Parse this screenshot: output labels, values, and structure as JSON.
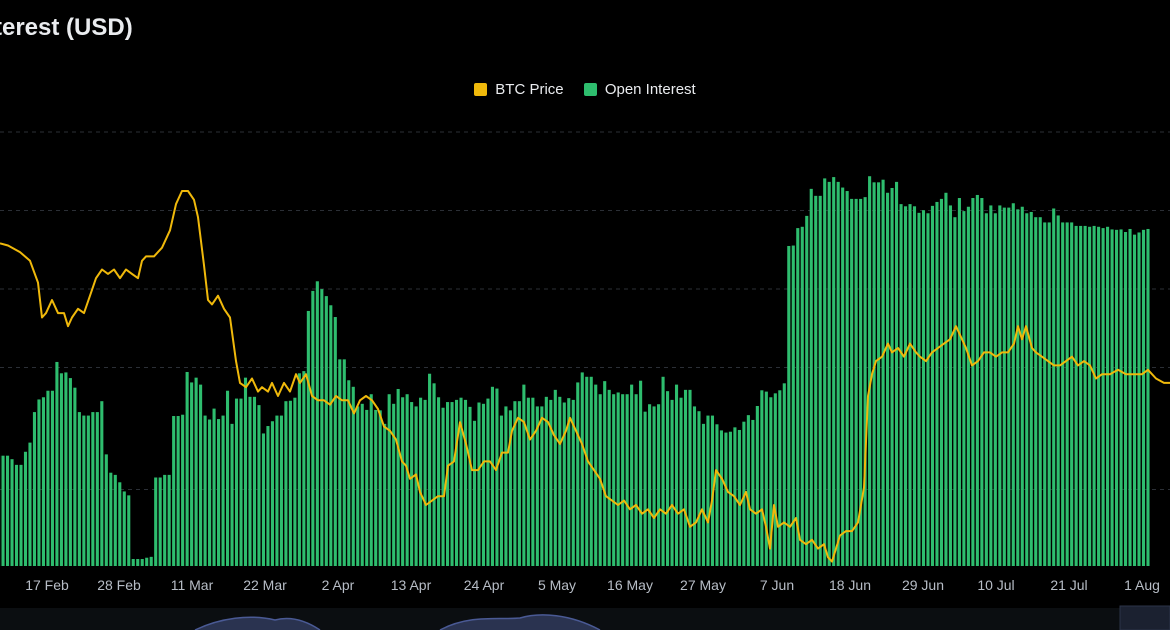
{
  "title": "terest (USD)",
  "chart_data": {
    "type": "bar",
    "x_tick_labels": [
      "17 Feb",
      "28 Feb",
      "11 Mar",
      "22 Mar",
      "2 Apr",
      "13 Apr",
      "24 Apr",
      "5 May",
      "16 May",
      "27 May",
      "7 Jun",
      "18 Jun",
      "29 Jun",
      "10 Jul",
      "21 Jul",
      "1 Aug"
    ],
    "grid": true,
    "legend_position": "top-center",
    "series": [
      {
        "name": "BTC Price",
        "kind": "line",
        "color": "#f0b90b",
        "points": [
          [
            0,
            0.74
          ],
          [
            8,
            0.735
          ],
          [
            20,
            0.72
          ],
          [
            30,
            0.7
          ],
          [
            38,
            0.65
          ],
          [
            42,
            0.57
          ],
          [
            46,
            0.58
          ],
          [
            52,
            0.61
          ],
          [
            58,
            0.58
          ],
          [
            64,
            0.58
          ],
          [
            68,
            0.55
          ],
          [
            72,
            0.57
          ],
          [
            78,
            0.59
          ],
          [
            84,
            0.58
          ],
          [
            90,
            0.62
          ],
          [
            96,
            0.66
          ],
          [
            102,
            0.68
          ],
          [
            108,
            0.67
          ],
          [
            114,
            0.68
          ],
          [
            120,
            0.66
          ],
          [
            126,
            0.68
          ],
          [
            132,
            0.67
          ],
          [
            138,
            0.66
          ],
          [
            142,
            0.7
          ],
          [
            146,
            0.71
          ],
          [
            154,
            0.71
          ],
          [
            162,
            0.73
          ],
          [
            170,
            0.77
          ],
          [
            176,
            0.83
          ],
          [
            182,
            0.86
          ],
          [
            188,
            0.86
          ],
          [
            194,
            0.84
          ],
          [
            198,
            0.8
          ],
          [
            204,
            0.69
          ],
          [
            208,
            0.61
          ],
          [
            212,
            0.6
          ],
          [
            218,
            0.62
          ],
          [
            224,
            0.59
          ],
          [
            230,
            0.57
          ],
          [
            236,
            0.47
          ],
          [
            240,
            0.42
          ],
          [
            246,
            0.41
          ],
          [
            252,
            0.43
          ],
          [
            258,
            0.4
          ],
          [
            262,
            0.41
          ],
          [
            268,
            0.4
          ],
          [
            272,
            0.42
          ],
          [
            278,
            0.39
          ],
          [
            284,
            0.42
          ],
          [
            290,
            0.4
          ],
          [
            296,
            0.44
          ],
          [
            300,
            0.42
          ],
          [
            306,
            0.44
          ],
          [
            312,
            0.39
          ],
          [
            318,
            0.38
          ],
          [
            324,
            0.38
          ],
          [
            330,
            0.37
          ],
          [
            336,
            0.39
          ],
          [
            342,
            0.38
          ],
          [
            348,
            0.38
          ],
          [
            354,
            0.35
          ],
          [
            360,
            0.38
          ],
          [
            366,
            0.39
          ],
          [
            372,
            0.38
          ],
          [
            378,
            0.36
          ],
          [
            384,
            0.32
          ],
          [
            390,
            0.31
          ],
          [
            396,
            0.29
          ],
          [
            402,
            0.24
          ],
          [
            406,
            0.23
          ],
          [
            410,
            0.2
          ],
          [
            416,
            0.21
          ],
          [
            420,
            0.17
          ],
          [
            426,
            0.14
          ],
          [
            432,
            0.15
          ],
          [
            438,
            0.16
          ],
          [
            444,
            0.16
          ],
          [
            448,
            0.23
          ],
          [
            454,
            0.24
          ],
          [
            460,
            0.33
          ],
          [
            466,
            0.28
          ],
          [
            472,
            0.22
          ],
          [
            478,
            0.22
          ],
          [
            484,
            0.24
          ],
          [
            490,
            0.24
          ],
          [
            496,
            0.22
          ],
          [
            502,
            0.26
          ],
          [
            508,
            0.26
          ],
          [
            512,
            0.31
          ],
          [
            518,
            0.34
          ],
          [
            524,
            0.33
          ],
          [
            530,
            0.29
          ],
          [
            536,
            0.31
          ],
          [
            542,
            0.34
          ],
          [
            548,
            0.33
          ],
          [
            554,
            0.3
          ],
          [
            560,
            0.28
          ],
          [
            566,
            0.31
          ],
          [
            570,
            0.34
          ],
          [
            576,
            0.31
          ],
          [
            582,
            0.28
          ],
          [
            588,
            0.24
          ],
          [
            594,
            0.22
          ],
          [
            600,
            0.2
          ],
          [
            606,
            0.16
          ],
          [
            612,
            0.15
          ],
          [
            618,
            0.14
          ],
          [
            624,
            0.15
          ],
          [
            630,
            0.13
          ],
          [
            636,
            0.14
          ],
          [
            642,
            0.12
          ],
          [
            648,
            0.13
          ],
          [
            654,
            0.11
          ],
          [
            660,
            0.13
          ],
          [
            666,
            0.12
          ],
          [
            672,
            0.14
          ],
          [
            678,
            0.12
          ],
          [
            684,
            0.13
          ],
          [
            690,
            0.09
          ],
          [
            696,
            0.1
          ],
          [
            702,
            0.13
          ],
          [
            708,
            0.1
          ],
          [
            712,
            0.15
          ],
          [
            716,
            0.22
          ],
          [
            722,
            0.2
          ],
          [
            728,
            0.17
          ],
          [
            734,
            0.16
          ],
          [
            740,
            0.14
          ],
          [
            746,
            0.17
          ],
          [
            750,
            0.13
          ],
          [
            756,
            0.12
          ],
          [
            762,
            0.13
          ],
          [
            766,
            0.09
          ],
          [
            770,
            0.04
          ],
          [
            774,
            0.14
          ],
          [
            778,
            0.09
          ],
          [
            784,
            0.1
          ],
          [
            790,
            0.09
          ],
          [
            796,
            0.11
          ],
          [
            800,
            0.06
          ],
          [
            806,
            0.05
          ],
          [
            812,
            0.06
          ],
          [
            818,
            0.04
          ],
          [
            824,
            0.05
          ],
          [
            828,
            0.02
          ],
          [
            832,
            0.01
          ],
          [
            836,
            0.04
          ],
          [
            840,
            0.07
          ],
          [
            846,
            0.08
          ],
          [
            852,
            0.08
          ],
          [
            858,
            0.1
          ],
          [
            864,
            0.18
          ],
          [
            868,
            0.39
          ],
          [
            872,
            0.44
          ],
          [
            876,
            0.47
          ],
          [
            882,
            0.48
          ],
          [
            888,
            0.51
          ],
          [
            892,
            0.49
          ],
          [
            898,
            0.5
          ],
          [
            904,
            0.48
          ],
          [
            910,
            0.51
          ],
          [
            916,
            0.49
          ],
          [
            920,
            0.48
          ],
          [
            926,
            0.47
          ],
          [
            932,
            0.49
          ],
          [
            938,
            0.5
          ],
          [
            944,
            0.51
          ],
          [
            950,
            0.52
          ],
          [
            956,
            0.55
          ],
          [
            960,
            0.53
          ],
          [
            966,
            0.5
          ],
          [
            972,
            0.46
          ],
          [
            978,
            0.47
          ],
          [
            984,
            0.49
          ],
          [
            990,
            0.49
          ],
          [
            996,
            0.48
          ],
          [
            1002,
            0.49
          ],
          [
            1008,
            0.49
          ],
          [
            1014,
            0.51
          ],
          [
            1018,
            0.55
          ],
          [
            1022,
            0.52
          ],
          [
            1026,
            0.55
          ],
          [
            1032,
            0.5
          ],
          [
            1036,
            0.49
          ],
          [
            1042,
            0.48
          ],
          [
            1048,
            0.47
          ],
          [
            1054,
            0.46
          ],
          [
            1060,
            0.46
          ],
          [
            1066,
            0.47
          ],
          [
            1072,
            0.48
          ],
          [
            1078,
            0.46
          ],
          [
            1084,
            0.47
          ],
          [
            1090,
            0.46
          ],
          [
            1096,
            0.43
          ],
          [
            1102,
            0.44
          ],
          [
            1110,
            0.44
          ],
          [
            1118,
            0.45
          ],
          [
            1126,
            0.44
          ],
          [
            1134,
            0.44
          ],
          [
            1142,
            0.44
          ],
          [
            1148,
            0.45
          ],
          [
            1156,
            0.43
          ],
          [
            1164,
            0.42
          ],
          [
            1170,
            0.42
          ]
        ]
      },
      {
        "name": "Open Interest",
        "kind": "bar",
        "color": "#2ebd6e",
        "values": [
          0.253,
          0.253,
          0.253,
          0.245,
          0.232,
          0.232,
          0.262,
          0.283,
          0.353,
          0.382,
          0.387,
          0.402,
          0.402,
          0.468,
          0.442,
          0.444,
          0.431,
          0.409,
          0.353,
          0.345,
          0.345,
          0.353,
          0.353,
          0.378,
          0.256,
          0.214,
          0.209,
          0.192,
          0.171,
          0.162,
          0.016,
          0.016,
          0.016,
          0.019,
          0.021,
          0.203,
          0.203,
          0.209,
          0.209,
          0.344,
          0.344,
          0.347,
          0.445,
          0.421,
          0.432,
          0.416,
          0.345,
          0.336,
          0.361,
          0.337,
          0.345,
          0.402,
          0.326,
          0.384,
          0.384,
          0.432,
          0.388,
          0.388,
          0.369,
          0.304,
          0.321,
          0.332,
          0.345,
          0.345,
          0.378,
          0.379,
          0.386,
          0.442,
          0.447,
          0.585,
          0.631,
          0.653,
          0.635,
          0.619,
          0.598,
          0.571,
          0.474,
          0.474,
          0.426,
          0.411,
          0.366,
          0.372,
          0.358,
          0.394,
          0.358,
          0.357,
          0.326,
          0.394,
          0.372,
          0.406,
          0.387,
          0.394,
          0.376,
          0.366,
          0.386,
          0.381,
          0.441,
          0.419,
          0.387,
          0.363,
          0.376,
          0.376,
          0.381,
          0.386,
          0.381,
          0.365,
          0.333,
          0.375,
          0.372,
          0.384,
          0.411,
          0.407,
          0.345,
          0.366,
          0.357,
          0.378,
          0.378,
          0.416,
          0.386,
          0.386,
          0.366,
          0.366,
          0.388,
          0.381,
          0.404,
          0.388,
          0.375,
          0.385,
          0.381,
          0.421,
          0.444,
          0.434,
          0.434,
          0.416,
          0.394,
          0.424,
          0.404,
          0.394,
          0.398,
          0.394,
          0.394,
          0.416,
          0.394,
          0.425,
          0.354,
          0.371,
          0.366,
          0.371,
          0.434,
          0.401,
          0.381,
          0.416,
          0.386,
          0.404,
          0.404,
          0.366,
          0.355,
          0.326,
          0.345,
          0.345,
          0.325,
          0.311,
          0.306,
          0.308,
          0.318,
          0.312,
          0.331,
          0.346,
          0.335,
          0.367,
          0.403,
          0.4,
          0.387,
          0.396,
          0.403,
          0.419,
          0.734,
          0.735,
          0.775,
          0.778,
          0.803,
          0.865,
          0.849,
          0.849,
          0.889,
          0.881,
          0.892,
          0.881,
          0.868,
          0.86,
          0.842,
          0.842,
          0.842,
          0.846,
          0.894,
          0.88,
          0.88,
          0.886,
          0.856,
          0.867,
          0.881,
          0.83,
          0.825,
          0.83,
          0.825,
          0.81,
          0.816,
          0.809,
          0.826,
          0.835,
          0.842,
          0.856,
          0.827,
          0.8,
          0.844,
          0.814,
          0.824,
          0.844,
          0.851,
          0.844,
          0.809,
          0.827,
          0.809,
          0.827,
          0.822,
          0.822,
          0.832,
          0.818,
          0.824,
          0.809,
          0.812,
          0.8,
          0.8,
          0.788,
          0.788,
          0.82,
          0.804,
          0.788,
          0.788,
          0.788,
          0.78,
          0.78,
          0.78,
          0.778,
          0.78,
          0.778,
          0.775,
          0.778,
          0.772,
          0.771,
          0.772,
          0.766,
          0.773,
          0.76,
          0.765,
          0.771,
          0.773
        ]
      }
    ]
  },
  "legend": {
    "items": [
      {
        "label": "BTC Price",
        "color": "#f0b90b"
      },
      {
        "label": "Open Interest",
        "color": "#2ebd6e"
      }
    ]
  }
}
